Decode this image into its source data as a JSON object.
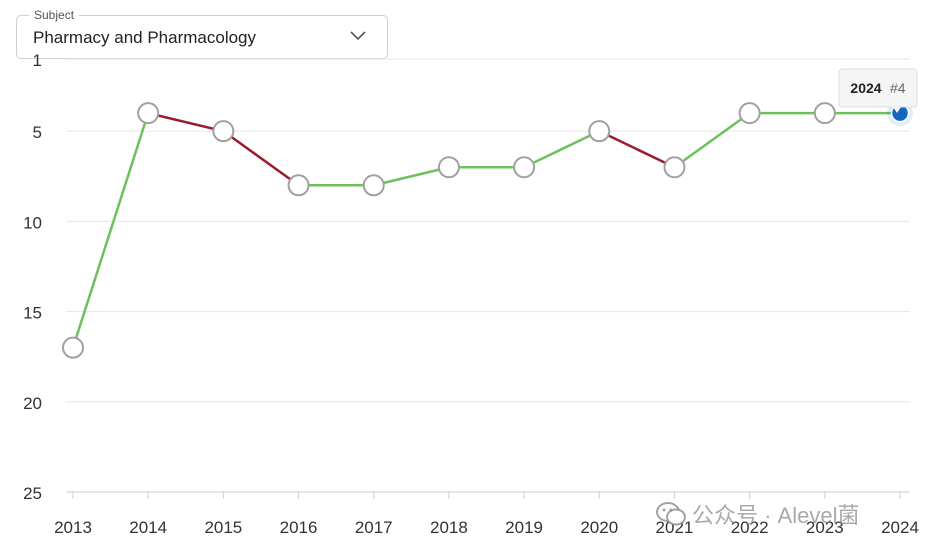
{
  "subject": {
    "legend": "Subject",
    "value": "Pharmacy and Pharmacology"
  },
  "tooltip": {
    "year": "2024",
    "rank": "#4"
  },
  "watermark": {
    "text": "公众号 · Alevel菌"
  },
  "colors": {
    "up": "#6cc15a",
    "down": "#9b1b30",
    "highlight": "#1565c0",
    "marker_stroke": "#a0a0a0"
  },
  "chart_data": {
    "type": "line",
    "categories": [
      "2013",
      "2014",
      "2015",
      "2016",
      "2017",
      "2018",
      "2019",
      "2020",
      "2021",
      "2022",
      "2023",
      "2024"
    ],
    "values": [
      17,
      4,
      5,
      8,
      8,
      7,
      7,
      5,
      7,
      4,
      4,
      4
    ],
    "y_ticks": [
      "1",
      "5",
      "10",
      "15",
      "20",
      "25"
    ],
    "ylim": [
      1,
      25
    ],
    "y_reversed": true,
    "grid": true,
    "highlight_index": 11
  }
}
